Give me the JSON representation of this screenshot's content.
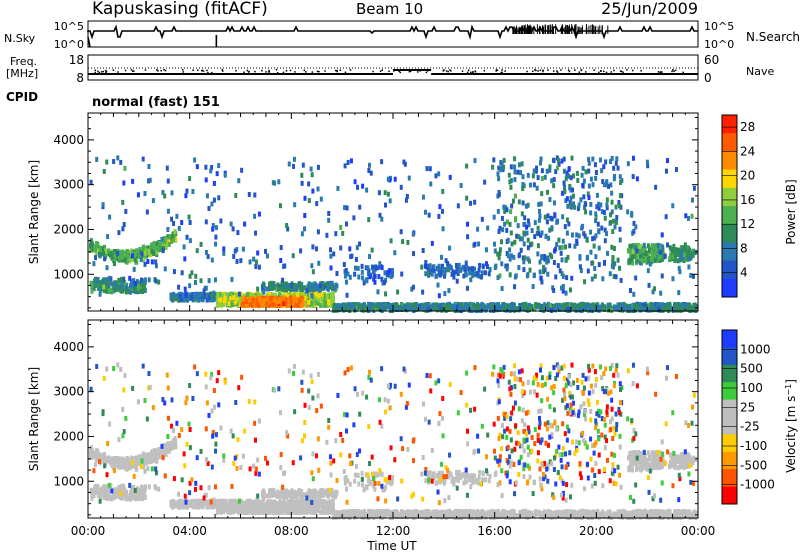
{
  "header": {
    "station": "Kapuskasing (fitACF)",
    "beam": "Beam 10",
    "date": "25/Jun/2009"
  },
  "left_labels": {
    "nsky": "N.Sky",
    "freq_line1": "Freq.",
    "freq_line2": "[MHz]",
    "cpid": "CPID"
  },
  "right_labels": {
    "nsearch": "N.Search",
    "nave": "Nave"
  },
  "mode_text": "normal (fast) 151",
  "colors": {
    "power": [
      "#1e3cff",
      "#2255c8",
      "#2a7ab0",
      "#2e8b57",
      "#4caf50",
      "#8fce3c",
      "#ffd700",
      "#ff8c00",
      "#ff5a00",
      "#ff2000"
    ],
    "velocity": [
      "#ff0000",
      "#ff5500",
      "#ff9900",
      "#ffcc00",
      "#bebebe",
      "#bebebe",
      "#3ccc3c",
      "#2e8b57",
      "#2255c8",
      "#1e3cff"
    ],
    "ground": "#c0c0c0"
  },
  "chart_data": [
    {
      "type": "line",
      "panel": "noise",
      "ylabel": "N.Sky",
      "ylabel_right": "N.Search",
      "yticks": [
        "10^5",
        "10^0"
      ],
      "yticks_right": [
        "10^5",
        "10^0"
      ]
    },
    {
      "type": "line",
      "panel": "frequency",
      "ylabel": "Freq. [MHz]",
      "ylabel_right": "Nave",
      "yticks": [
        18,
        8
      ],
      "yticks_right": [
        60,
        0
      ],
      "segments": [
        {
          "from": "00:00",
          "to": "12:00",
          "freq": 10.4
        },
        {
          "from": "12:00",
          "to": "13:30",
          "freq": 12.0
        },
        {
          "from": "13:30",
          "to": "24:00",
          "freq": 10.4
        }
      ]
    },
    {
      "type": "heatmap",
      "panel": "power",
      "ylabel": "Slant Range [km]",
      "yticks": [
        1000,
        2000,
        3000,
        4000
      ],
      "ylim": [
        180,
        4600
      ],
      "colorbar_label": "Power [dB]",
      "colorbar_ticks": [
        4,
        8,
        12,
        16,
        20,
        24,
        28
      ],
      "colorbar_range": [
        0,
        30
      ]
    },
    {
      "type": "heatmap",
      "panel": "velocity",
      "ylabel": "Slant Range [km]",
      "yticks": [
        1000,
        2000,
        3000,
        4000
      ],
      "ylim": [
        180,
        4600
      ],
      "colorbar_label": "Velocity [m s^-1]",
      "colorbar_ticks": [
        "1000",
        "500",
        "100",
        "25",
        "-25",
        "-100",
        "-500",
        "-1000"
      ],
      "xlabel": "Time UT",
      "xticks": [
        "00:00",
        "04:00",
        "08:00",
        "12:00",
        "16:00",
        "20:00",
        "00:00"
      ],
      "xlim": [
        0,
        24
      ]
    }
  ]
}
